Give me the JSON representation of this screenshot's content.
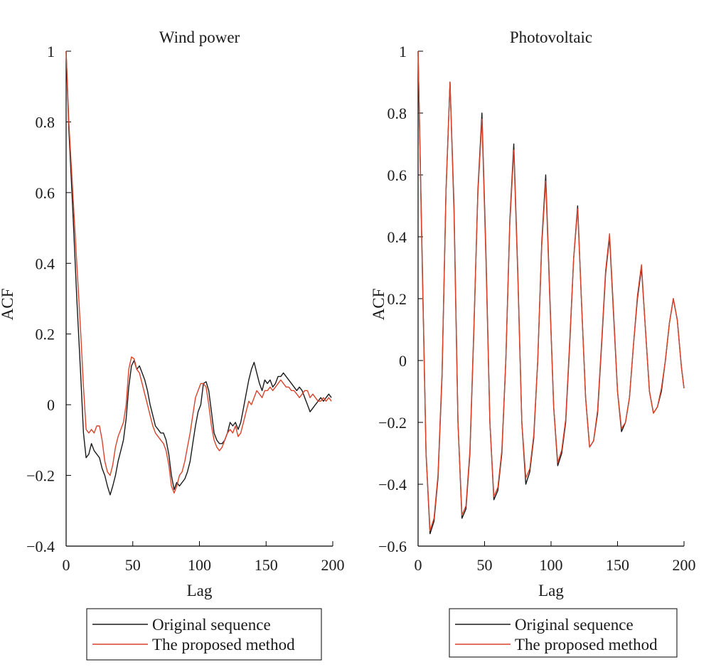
{
  "colors": {
    "original": "#1a1a1a",
    "proposed": "#d9442b"
  },
  "chart_data": [
    {
      "type": "line",
      "title": "Wind power",
      "xlabel": "Lag",
      "ylabel": "ACF",
      "xlim": [
        0,
        200
      ],
      "ylim": [
        -0.4,
        1
      ],
      "xticks": [
        0,
        50,
        100,
        150,
        200
      ],
      "xtick_labels": [
        "0",
        "50",
        "100",
        "150",
        "200"
      ],
      "yticks": [
        -0.4,
        -0.2,
        0,
        0.2,
        0.4,
        0.6,
        0.8,
        1
      ],
      "ytick_labels": [
        "−0.4",
        "−0.2",
        "0",
        "0.2",
        "0.4",
        "0.6",
        "0.8",
        "1"
      ],
      "grid": false,
      "legend_position": "below",
      "series": [
        {
          "name": "Original sequence",
          "color": "#1a1a1a",
          "x": [
            0,
            2,
            5,
            8,
            11,
            13,
            15,
            17,
            19,
            21,
            23,
            25,
            27,
            29,
            31,
            33,
            35,
            37,
            39,
            41,
            43,
            45,
            47,
            49,
            51,
            53,
            55,
            57,
            59,
            61,
            63,
            65,
            67,
            69,
            71,
            73,
            75,
            77,
            79,
            81,
            83,
            85,
            87,
            89,
            91,
            93,
            95,
            97,
            99,
            101,
            103,
            105,
            107,
            109,
            111,
            113,
            115,
            117,
            119,
            121,
            123,
            125,
            127,
            129,
            131,
            133,
            135,
            137,
            139,
            141,
            143,
            145,
            147,
            149,
            151,
            153,
            155,
            157,
            159,
            161,
            163,
            165,
            167,
            169,
            171,
            173,
            175,
            177,
            179,
            181,
            183,
            185,
            187,
            189,
            191,
            193,
            195,
            197,
            199
          ],
          "y": [
            1.0,
            0.78,
            0.55,
            0.3,
            0.08,
            -0.08,
            -0.15,
            -0.14,
            -0.11,
            -0.13,
            -0.14,
            -0.15,
            -0.18,
            -0.2,
            -0.23,
            -0.255,
            -0.23,
            -0.2,
            -0.16,
            -0.13,
            -0.1,
            -0.04,
            0.05,
            0.11,
            0.125,
            0.1,
            0.11,
            0.09,
            0.07,
            0.04,
            0.0,
            -0.03,
            -0.06,
            -0.07,
            -0.08,
            -0.08,
            -0.1,
            -0.14,
            -0.2,
            -0.24,
            -0.22,
            -0.23,
            -0.22,
            -0.21,
            -0.19,
            -0.16,
            -0.11,
            -0.06,
            -0.02,
            0.0,
            0.06,
            0.065,
            0.04,
            -0.02,
            -0.08,
            -0.1,
            -0.11,
            -0.11,
            -0.1,
            -0.08,
            -0.05,
            -0.06,
            -0.05,
            -0.07,
            -0.05,
            -0.01,
            0.03,
            0.07,
            0.1,
            0.12,
            0.09,
            0.06,
            0.04,
            0.07,
            0.06,
            0.07,
            0.05,
            0.06,
            0.08,
            0.08,
            0.09,
            0.08,
            0.07,
            0.06,
            0.05,
            0.04,
            0.05,
            0.04,
            0.02,
            0.0,
            -0.02,
            -0.01,
            0.0,
            0.01,
            0.02,
            0.01,
            0.02,
            0.03,
            0.02
          ]
        },
        {
          "name": "The proposed method",
          "color": "#d9442b",
          "x": [
            0,
            2,
            5,
            8,
            11,
            13,
            15,
            17,
            19,
            21,
            23,
            25,
            27,
            29,
            31,
            33,
            35,
            37,
            39,
            41,
            43,
            45,
            47,
            49,
            51,
            53,
            55,
            57,
            59,
            61,
            63,
            65,
            67,
            69,
            71,
            73,
            75,
            77,
            79,
            81,
            83,
            85,
            87,
            89,
            91,
            93,
            95,
            97,
            99,
            101,
            103,
            105,
            107,
            109,
            111,
            113,
            115,
            117,
            119,
            121,
            123,
            125,
            127,
            129,
            131,
            133,
            135,
            137,
            139,
            141,
            143,
            145,
            147,
            149,
            151,
            153,
            155,
            157,
            159,
            161,
            163,
            165,
            167,
            169,
            171,
            173,
            175,
            177,
            179,
            181,
            183,
            185,
            187,
            189,
            191,
            193,
            195,
            197,
            199
          ],
          "y": [
            1.0,
            0.8,
            0.6,
            0.4,
            0.2,
            0.05,
            -0.07,
            -0.08,
            -0.07,
            -0.08,
            -0.06,
            -0.06,
            -0.1,
            -0.16,
            -0.19,
            -0.2,
            -0.17,
            -0.12,
            -0.09,
            -0.07,
            -0.05,
            0.0,
            0.1,
            0.135,
            0.13,
            0.1,
            0.09,
            0.06,
            0.03,
            0.0,
            -0.03,
            -0.06,
            -0.08,
            -0.09,
            -0.1,
            -0.11,
            -0.13,
            -0.17,
            -0.23,
            -0.25,
            -0.23,
            -0.2,
            -0.19,
            -0.16,
            -0.12,
            -0.08,
            -0.03,
            0.02,
            0.04,
            0.06,
            0.06,
            0.05,
            0.0,
            -0.06,
            -0.1,
            -0.12,
            -0.13,
            -0.12,
            -0.1,
            -0.08,
            -0.07,
            -0.08,
            -0.06,
            -0.09,
            -0.08,
            -0.05,
            -0.02,
            0.01,
            0.0,
            0.02,
            0.04,
            0.03,
            0.02,
            0.04,
            0.04,
            0.05,
            0.04,
            0.05,
            0.06,
            0.07,
            0.06,
            0.05,
            0.05,
            0.04,
            0.04,
            0.03,
            0.02,
            0.03,
            0.04,
            0.04,
            0.02,
            0.03,
            0.02,
            0.01,
            0.01,
            0.02,
            0.01,
            0.02,
            0.01
          ]
        }
      ]
    },
    {
      "type": "line",
      "title": "Photovoltaic",
      "xlabel": "Lag",
      "ylabel": "ACF",
      "xlim": [
        0,
        200
      ],
      "ylim": [
        -0.6,
        1
      ],
      "xticks": [
        0,
        50,
        100,
        150,
        200
      ],
      "xtick_labels": [
        "0",
        "50",
        "100",
        "150",
        "200"
      ],
      "yticks": [
        -0.6,
        -0.4,
        -0.2,
        0,
        0.2,
        0.4,
        0.6,
        0.8,
        1
      ],
      "ytick_labels": [
        "−0.6",
        "−0.4",
        "−0.2",
        "0",
        "0.2",
        "0.4",
        "0.6",
        "0.8",
        "1"
      ],
      "grid": false,
      "legend_position": "below",
      "series": [
        {
          "name": "Original sequence",
          "color": "#1a1a1a",
          "x": [
            0,
            3,
            6,
            9,
            12,
            15,
            18,
            21,
            24,
            27,
            30,
            33,
            36,
            39,
            42,
            45,
            48,
            51,
            54,
            57,
            60,
            63,
            66,
            69,
            72,
            75,
            78,
            81,
            84,
            87,
            90,
            93,
            96,
            99,
            102,
            105,
            108,
            111,
            114,
            117,
            120,
            123,
            126,
            129,
            132,
            135,
            138,
            141,
            144,
            147,
            150,
            153,
            156,
            159,
            162,
            165,
            168,
            171,
            174,
            177,
            180,
            183,
            186,
            189,
            192,
            195,
            198,
            200
          ],
          "y": [
            1.0,
            0.35,
            -0.3,
            -0.56,
            -0.52,
            -0.38,
            -0.05,
            0.55,
            0.9,
            0.5,
            -0.2,
            -0.51,
            -0.48,
            -0.3,
            0.1,
            0.55,
            0.8,
            0.35,
            -0.2,
            -0.45,
            -0.42,
            -0.3,
            0.0,
            0.45,
            0.7,
            0.28,
            -0.2,
            -0.4,
            -0.36,
            -0.25,
            0.0,
            0.38,
            0.6,
            0.22,
            -0.15,
            -0.34,
            -0.3,
            -0.2,
            0.05,
            0.33,
            0.5,
            0.18,
            -0.12,
            -0.28,
            -0.26,
            -0.17,
            0.05,
            0.28,
            0.4,
            0.15,
            -0.1,
            -0.23,
            -0.2,
            -0.12,
            0.05,
            0.2,
            0.3,
            0.1,
            -0.1,
            -0.17,
            -0.15,
            -0.1,
            0.0,
            0.12,
            0.2,
            0.13,
            -0.02,
            -0.09
          ]
        },
        {
          "name": "The proposed method",
          "color": "#d9442b",
          "x": [
            0,
            3,
            6,
            9,
            12,
            15,
            18,
            21,
            24,
            27,
            30,
            33,
            36,
            39,
            42,
            45,
            48,
            51,
            54,
            57,
            60,
            63,
            66,
            69,
            72,
            75,
            78,
            81,
            84,
            87,
            90,
            93,
            96,
            99,
            102,
            105,
            108,
            111,
            114,
            117,
            120,
            123,
            126,
            129,
            132,
            135,
            138,
            141,
            144,
            147,
            150,
            153,
            156,
            159,
            162,
            165,
            168,
            171,
            174,
            177,
            180,
            183,
            186,
            189,
            192,
            195,
            198,
            200
          ],
          "y": [
            1.0,
            0.33,
            -0.3,
            -0.55,
            -0.51,
            -0.37,
            -0.04,
            0.55,
            0.9,
            0.48,
            -0.2,
            -0.5,
            -0.47,
            -0.29,
            0.11,
            0.54,
            0.78,
            0.33,
            -0.2,
            -0.44,
            -0.41,
            -0.29,
            0.0,
            0.44,
            0.68,
            0.27,
            -0.2,
            -0.38,
            -0.35,
            -0.24,
            0.0,
            0.37,
            0.58,
            0.21,
            -0.15,
            -0.33,
            -0.29,
            -0.19,
            0.06,
            0.33,
            0.49,
            0.18,
            -0.12,
            -0.28,
            -0.26,
            -0.16,
            0.06,
            0.29,
            0.41,
            0.16,
            -0.1,
            -0.22,
            -0.2,
            -0.12,
            0.05,
            0.21,
            0.31,
            0.1,
            -0.1,
            -0.17,
            -0.15,
            -0.09,
            0.0,
            0.12,
            0.2,
            0.13,
            -0.02,
            -0.09
          ]
        }
      ]
    }
  ]
}
